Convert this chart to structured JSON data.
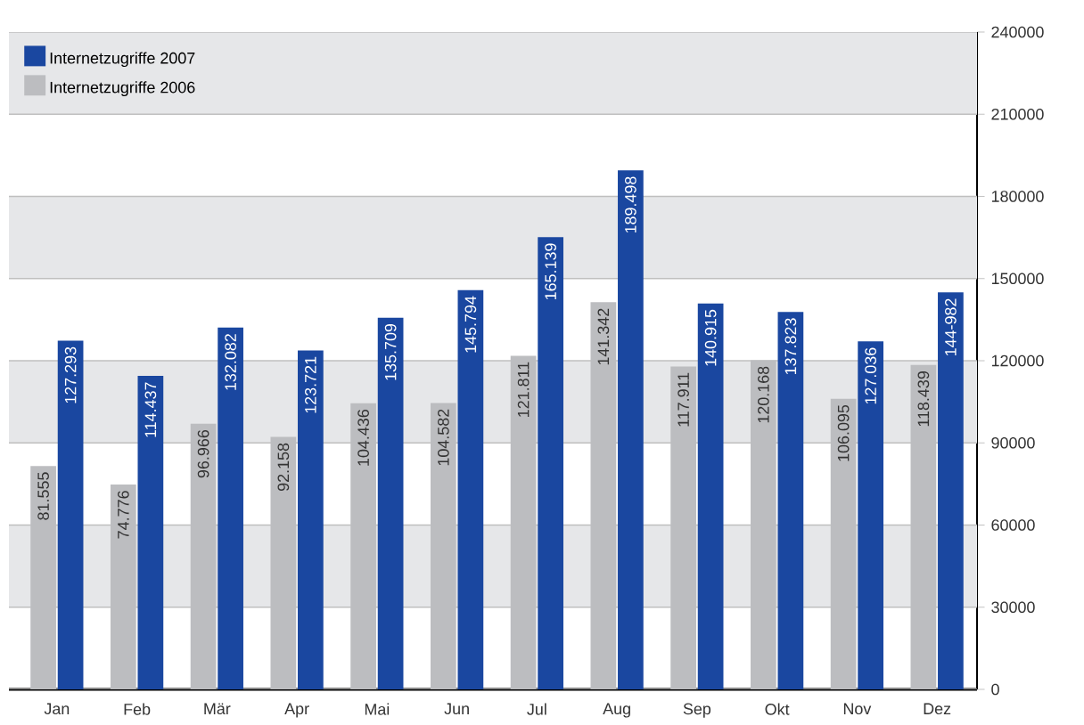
{
  "chart_data": {
    "type": "bar",
    "categories": [
      "Jan",
      "Feb",
      "Mär",
      "Apr",
      "Mai",
      "Jun",
      "Jul",
      "Aug",
      "Sep",
      "Okt",
      "Nov",
      "Dez"
    ],
    "series": [
      {
        "name": "Internetzugriffe 2006",
        "color": "#bcbdc0",
        "values": [
          81555,
          74776,
          96966,
          92158,
          104436,
          104582,
          121811,
          141342,
          117911,
          120168,
          106095,
          118439
        ],
        "value_labels": [
          "81.555",
          "74.776",
          "96.966",
          "92.158",
          "104.436",
          "104.582",
          "121.811",
          "141.342",
          "117.911",
          "120.168",
          "106.095",
          "118.439"
        ]
      },
      {
        "name": "Internetzugriffe 2007",
        "color": "#1a47a0",
        "values": [
          127293,
          114437,
          132082,
          123721,
          135709,
          145794,
          165139,
          189498,
          140915,
          137823,
          127036,
          144982
        ],
        "value_labels": [
          "127.293",
          "114.437",
          "132.082",
          "123.721",
          "135.709",
          "145.794",
          "165.139",
          "189.498",
          "140.915",
          "137.823",
          "127.036",
          "144-982"
        ]
      }
    ],
    "ylim": [
      0,
      240000
    ],
    "yticks": [
      0,
      30000,
      60000,
      90000,
      120000,
      150000,
      180000,
      210000,
      240000
    ],
    "bands": [
      {
        "axis": "y",
        "from": 30000,
        "to": 60000,
        "color": "#e6e7e9"
      },
      {
        "axis": "y",
        "from": 90000,
        "to": 120000,
        "color": "#e6e7e9"
      },
      {
        "axis": "y",
        "from": 150000,
        "to": 180000,
        "color": "#e6e7e9"
      },
      {
        "axis": "y",
        "from": 210000,
        "to": 240000,
        "color": "#e6e7e9"
      }
    ],
    "grid": "y",
    "legend": "top left"
  }
}
